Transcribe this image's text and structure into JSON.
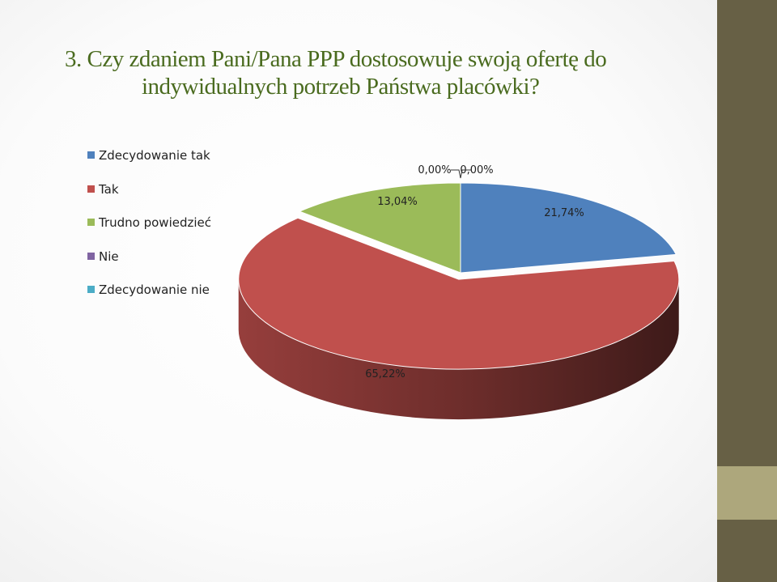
{
  "slide": {
    "title_line1": "3. Czy zdaniem Pani/Pana PPP dostosowuje swoją ofertę do",
    "title_line2": "indywidualnych potrzeb Państwa placówki?",
    "title_color": "#4a6b1f",
    "side_panel_dark": "#676045",
    "side_panel_light": "#ada77c"
  },
  "chart_data": {
    "type": "pie",
    "style": "3d-exploded",
    "title": "",
    "legend_position": "left",
    "start_angle": "top, clockwise",
    "series": [
      {
        "labels": [
          "Zdecydowanie tak",
          "Tak",
          "Trudno powiedzieć",
          "Nie",
          "Zdecydowanie nie"
        ],
        "values": [
          21.74,
          65.22,
          13.04,
          0.0,
          0.0
        ],
        "data_labels": [
          "21,74%",
          "65,22%",
          "13,04%",
          "0,00%",
          "0,00%"
        ],
        "colors": [
          "#4f81bd",
          "#c0504d",
          "#9bbb59",
          "#8064a2",
          "#4bacc6"
        ]
      }
    ]
  }
}
